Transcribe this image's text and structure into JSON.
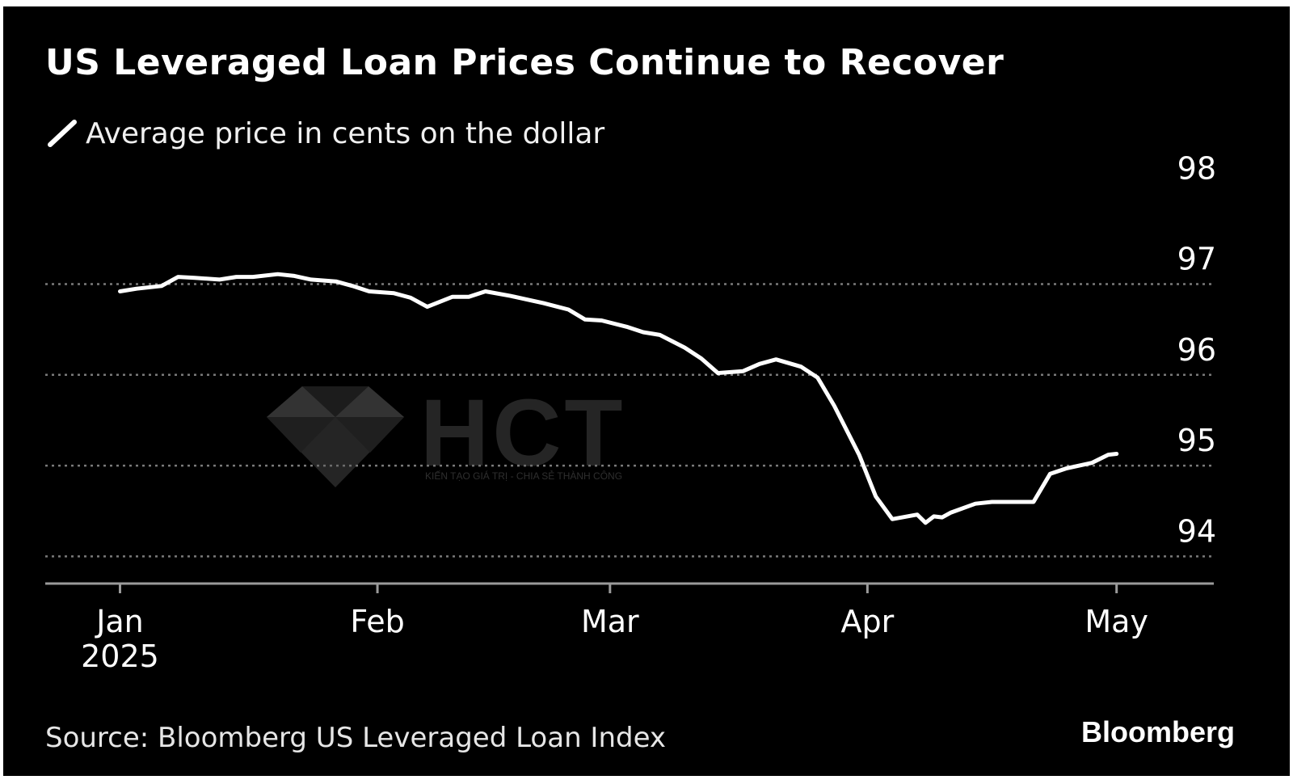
{
  "chart_data": {
    "type": "line",
    "title": "US Leveraged Loan Prices Continue to Recover",
    "series": [
      {
        "name": "Average price in cents on the dollar",
        "color": "#ffffff",
        "x": [
          "2025-01-01",
          "2025-01-03",
          "2025-01-06",
          "2025-01-08",
          "2025-01-10",
          "2025-01-13",
          "2025-01-15",
          "2025-01-17",
          "2025-01-20",
          "2025-01-22",
          "2025-01-24",
          "2025-01-27",
          "2025-01-29",
          "2025-01-31",
          "2025-02-03",
          "2025-02-05",
          "2025-02-07",
          "2025-02-10",
          "2025-02-12",
          "2025-02-14",
          "2025-02-17",
          "2025-02-19",
          "2025-02-21",
          "2025-02-24",
          "2025-02-26",
          "2025-02-28",
          "2025-03-03",
          "2025-03-05",
          "2025-03-07",
          "2025-03-10",
          "2025-03-12",
          "2025-03-14",
          "2025-03-17",
          "2025-03-19",
          "2025-03-21",
          "2025-03-24",
          "2025-03-26",
          "2025-03-28",
          "2025-03-31",
          "2025-04-02",
          "2025-04-04",
          "2025-04-07",
          "2025-04-08",
          "2025-04-09",
          "2025-04-10",
          "2025-04-11",
          "2025-04-14",
          "2025-04-16",
          "2025-04-18",
          "2025-04-21",
          "2025-04-23",
          "2025-04-25",
          "2025-04-28",
          "2025-04-30",
          "2025-05-01"
        ],
        "values": [
          96.92,
          96.95,
          96.98,
          97.08,
          97.07,
          97.05,
          97.08,
          97.08,
          97.11,
          97.09,
          97.05,
          97.03,
          96.98,
          96.92,
          96.9,
          96.85,
          96.75,
          96.86,
          96.86,
          96.92,
          96.87,
          96.83,
          96.79,
          96.72,
          96.61,
          96.6,
          96.53,
          96.47,
          96.44,
          96.3,
          96.18,
          96.02,
          96.04,
          96.12,
          96.17,
          96.09,
          95.97,
          95.66,
          95.12,
          94.66,
          94.41,
          94.46,
          94.37,
          94.44,
          94.43,
          94.48,
          94.58,
          94.6,
          94.6,
          94.6,
          94.91,
          94.97,
          95.03,
          95.12,
          95.13
        ]
      }
    ],
    "x_ticks": [
      {
        "date": "2025-01-01",
        "label": "Jan",
        "sublabel": "2025"
      },
      {
        "date": "2025-02-01",
        "label": "Feb",
        "sublabel": ""
      },
      {
        "date": "2025-03-01",
        "label": "Mar",
        "sublabel": ""
      },
      {
        "date": "2025-04-01",
        "label": "Apr",
        "sublabel": ""
      },
      {
        "date": "2025-05-01",
        "label": "May",
        "sublabel": ""
      }
    ],
    "x_range": [
      "2024-12-23",
      "2025-05-13"
    ],
    "y_ticks": [
      94,
      95,
      96,
      97,
      98
    ],
    "ylim": [
      93.7,
      98.35
    ],
    "grid": {
      "horizontal": true,
      "style": "dotted",
      "color": "#7a7a7a"
    },
    "background": "#000000",
    "legend_position": "top-left"
  },
  "source": "Source: Bloomberg US Leveraged Loan Index",
  "brand": "Bloomberg",
  "watermark": {
    "text": "HCT",
    "tagline": "KIẾN TẠO GIÁ TRỊ - CHIA SẺ THÀNH CÔNG",
    "icon": "diamond-logo-icon"
  }
}
